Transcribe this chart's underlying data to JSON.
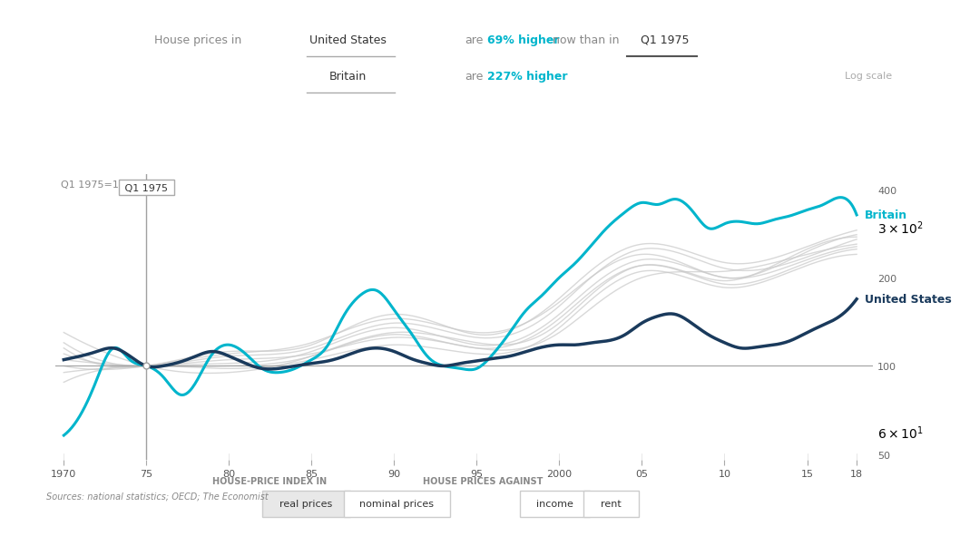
{
  "title_text": "House prices in",
  "us_label": "United States",
  "uk_label": "Britain",
  "comparison_text": "are",
  "us_pct": "69% higher",
  "uk_pct": "227% higher",
  "now_than_in": "now than in",
  "quarter_label": "Q1 1975",
  "log_scale_label": "Log scale",
  "y_label": "Q1 1975=100",
  "x_start": 1970,
  "x_end": 2018,
  "ref_year": 1975,
  "ref_value": 100,
  "y_ticks": [
    50,
    100,
    200,
    400
  ],
  "x_ticks": [
    1970,
    1975,
    1980,
    1985,
    1990,
    1995,
    2000,
    2005,
    2010,
    2015,
    2018
  ],
  "x_tick_labels": [
    "1970",
    "75",
    "80",
    "85",
    "90",
    "95",
    "2000",
    "05",
    "10",
    "15",
    "18"
  ],
  "source_text": "Sources: national statistics; OECD; The Economist",
  "btn1_text": "real prices",
  "btn2_text": "nominal prices",
  "btn3_text": "income",
  "btn4_text": "rent",
  "btn_label1": "HOUSE-PRICE INDEX IN",
  "btn_label2": "HOUSE PRICES AGAINST",
  "us_color": "#1a3a5c",
  "uk_color": "#00b5cc",
  "grey_color": "#c8c8c8",
  "ref_line_color": "#a0a0a0",
  "ref_vline_color": "#a0a0a0",
  "background_color": "#ffffff",
  "us_years": [
    1970,
    1971,
    1972,
    1973,
    1974,
    1975,
    1976,
    1977,
    1978,
    1979,
    1980,
    1981,
    1982,
    1983,
    1984,
    1985,
    1986,
    1987,
    1988,
    1989,
    1990,
    1991,
    1992,
    1993,
    1994,
    1995,
    1996,
    1997,
    1998,
    1999,
    2000,
    2001,
    2002,
    2003,
    2004,
    2005,
    2006,
    2007,
    2008,
    2009,
    2010,
    2011,
    2012,
    2013,
    2014,
    2015,
    2016,
    2017,
    2018
  ],
  "us_values": [
    105,
    108,
    112,
    115,
    108,
    100,
    100,
    103,
    108,
    112,
    108,
    102,
    98,
    98,
    100,
    102,
    104,
    108,
    113,
    115,
    112,
    106,
    102,
    100,
    102,
    104,
    106,
    108,
    112,
    116,
    118,
    118,
    120,
    122,
    128,
    140,
    148,
    150,
    140,
    128,
    120,
    115,
    116,
    118,
    122,
    130,
    138,
    148,
    169
  ],
  "uk_years": [
    1970,
    1971,
    1972,
    1973,
    1974,
    1975,
    1976,
    1977,
    1978,
    1979,
    1980,
    1981,
    1982,
    1983,
    1984,
    1985,
    1986,
    1987,
    1988,
    1989,
    1990,
    1991,
    1992,
    1993,
    1994,
    1995,
    1996,
    1997,
    1998,
    1999,
    2000,
    2001,
    2002,
    2003,
    2004,
    2005,
    2006,
    2007,
    2008,
    2009,
    2010,
    2011,
    2012,
    2013,
    2014,
    2015,
    2016,
    2017,
    2018
  ],
  "uk_values": [
    58,
    68,
    90,
    115,
    105,
    100,
    92,
    80,
    88,
    110,
    118,
    110,
    98,
    95,
    98,
    105,
    118,
    150,
    175,
    180,
    155,
    130,
    108,
    100,
    98,
    98,
    110,
    130,
    155,
    175,
    200,
    225,
    260,
    300,
    335,
    360,
    355,
    370,
    340,
    295,
    305,
    310,
    305,
    315,
    325,
    340,
    355,
    375,
    327
  ],
  "grey_series": [
    {
      "years": [
        1970,
        1975,
        1980,
        1985,
        1990,
        1995,
        2000,
        2005,
        2010,
        2015,
        2018
      ],
      "values": [
        110,
        100,
        105,
        110,
        125,
        115,
        130,
        200,
        210,
        240,
        260
      ]
    },
    {
      "years": [
        1970,
        1975,
        1980,
        1985,
        1990,
        1995,
        2000,
        2005,
        2010,
        2015,
        2018
      ],
      "values": [
        130,
        100,
        95,
        108,
        130,
        120,
        140,
        220,
        195,
        250,
        275
      ]
    },
    {
      "years": [
        1970,
        1975,
        1980,
        1985,
        1990,
        1995,
        2000,
        2005,
        2010,
        2015,
        2018
      ],
      "values": [
        95,
        100,
        102,
        112,
        135,
        118,
        150,
        230,
        200,
        230,
        255
      ]
    },
    {
      "years": [
        1970,
        1975,
        1980,
        1985,
        1990,
        1995,
        2000,
        2005,
        2010,
        2015,
        2018
      ],
      "values": [
        120,
        100,
        108,
        115,
        140,
        125,
        160,
        250,
        215,
        235,
        270
      ]
    },
    {
      "years": [
        1970,
        1975,
        1980,
        1985,
        1990,
        1995,
        2000,
        2005,
        2010,
        2015,
        2018
      ],
      "values": [
        88,
        100,
        98,
        105,
        118,
        110,
        135,
        210,
        185,
        220,
        240
      ]
    },
    {
      "years": [
        1970,
        1975,
        1980,
        1985,
        1990,
        1995,
        2000,
        2005,
        2010,
        2015,
        2018
      ],
      "values": [
        100,
        100,
        110,
        120,
        145,
        130,
        165,
        240,
        200,
        245,
        280
      ]
    },
    {
      "years": [
        1970,
        1975,
        1980,
        1985,
        1990,
        1995,
        2000,
        2005,
        2010,
        2015,
        2018
      ],
      "values": [
        115,
        100,
        112,
        118,
        150,
        128,
        170,
        260,
        225,
        255,
        290
      ]
    },
    {
      "years": [
        1970,
        1975,
        1980,
        1985,
        1990,
        1995,
        2000,
        2005,
        2010,
        2015,
        2018
      ],
      "values": [
        105,
        100,
        100,
        108,
        128,
        115,
        145,
        220,
        190,
        225,
        250
      ]
    }
  ]
}
